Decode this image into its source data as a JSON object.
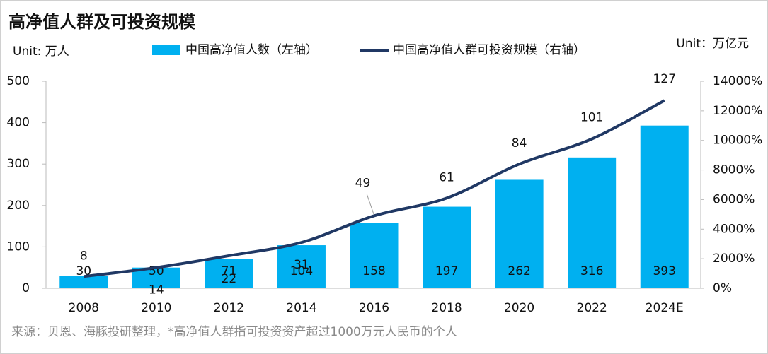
{
  "chart_data": {
    "type": "bar_line",
    "title": "高净值人群及可投资规模",
    "y_unit": "Unit: 万人",
    "y2_unit": "Unit：万亿元",
    "source": "来源：贝恩、海豚投研整理，*高净值人群指可投资资产超过1000万元人民币的个人",
    "categories": [
      "2008",
      "2010",
      "2012",
      "2014",
      "2016",
      "2018",
      "2020",
      "2022",
      "2024E"
    ],
    "series": [
      {
        "name": "中国高净值人数（左轴）",
        "type": "bar",
        "color": "#00b0f0",
        "values": [
          30,
          50,
          71,
          104,
          158,
          197,
          262,
          316,
          393
        ]
      },
      {
        "name": "中国高净值人群可投资规模（右轴）",
        "type": "line",
        "axis": "y2",
        "color": "#203864",
        "values": [
          8,
          14,
          22,
          31,
          49,
          61,
          84,
          101,
          127
        ]
      }
    ],
    "ylim": [
      0,
      500
    ],
    "yticks": [
      0,
      100,
      200,
      300,
      400,
      500
    ],
    "y2lim": [
      0,
      140
    ],
    "y2ticks": [
      {
        "value": 0,
        "label": "0%"
      },
      {
        "value": 20,
        "label": "2000%"
      },
      {
        "value": 40,
        "label": "4000%"
      },
      {
        "value": 60,
        "label": "6000%"
      },
      {
        "value": 80,
        "label": "8000%"
      },
      {
        "value": 100,
        "label": "10000%"
      },
      {
        "value": 120,
        "label": "12000%"
      },
      {
        "value": 140,
        "label": "14000%"
      }
    ]
  }
}
